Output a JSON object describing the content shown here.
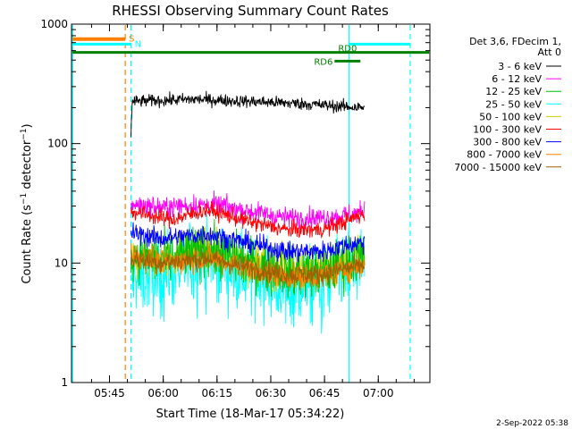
{
  "chart_data": {
    "type": "line",
    "title": "RHESSI Observing Summary Count Rates",
    "xlabel": "Start Time (18-Mar-17 05:34:22)",
    "ylabel": "Count Rate (s⁻¹ detector⁻¹)",
    "yscale": "log",
    "ylim": [
      1,
      1000
    ],
    "xlim_minutes": [
      0,
      100
    ],
    "xticks": [
      {
        "label": "05:45",
        "minute": 10.6
      },
      {
        "label": "06:00",
        "minute": 25.6
      },
      {
        "label": "06:15",
        "minute": 40.6
      },
      {
        "label": "06:30",
        "minute": 55.6
      },
      {
        "label": "06:45",
        "minute": 70.6
      },
      {
        "label": "07:00",
        "minute": 85.6
      }
    ],
    "yticks": [
      {
        "label": "1",
        "value": 1
      },
      {
        "label": "10",
        "value": 10
      },
      {
        "label": "100",
        "value": 100
      },
      {
        "label": "1000",
        "value": 1000
      }
    ],
    "legend_title": [
      "Det 3,6, FDecim 1,",
      "Att 0"
    ],
    "legend_placement": "right",
    "data_start_minute": 16.6,
    "data_end_minute": 81.8,
    "series": [
      {
        "name": "3 - 6 keV",
        "color": "#000000",
        "values_at": [
          [
            16.6,
            120
          ],
          [
            17,
            225
          ],
          [
            25,
            230
          ],
          [
            35,
            235
          ],
          [
            45,
            228
          ],
          [
            55,
            222
          ],
          [
            65,
            215
          ],
          [
            75,
            205
          ],
          [
            81.8,
            200
          ]
        ],
        "noise": 0.06
      },
      {
        "name": "6 - 12 keV",
        "color": "#ff00ff",
        "values_at": [
          [
            16.6,
            31
          ],
          [
            25,
            29
          ],
          [
            30,
            30
          ],
          [
            40,
            31
          ],
          [
            50,
            27
          ],
          [
            60,
            24
          ],
          [
            70,
            24
          ],
          [
            76,
            25
          ],
          [
            81.8,
            27
          ]
        ],
        "noise": 0.1
      },
      {
        "name": "12 - 25 keV",
        "color": "#00c000",
        "values_at": [
          [
            16.6,
            12
          ],
          [
            25,
            10.5
          ],
          [
            38,
            13
          ],
          [
            50,
            10
          ],
          [
            60,
            8.5
          ],
          [
            70,
            8.3
          ],
          [
            76,
            10
          ],
          [
            81.8,
            12
          ]
        ],
        "noise": 0.25
      },
      {
        "name": "25 - 50 keV",
        "color": "#00ffff",
        "values_at": [
          [
            16.6,
            7
          ],
          [
            25,
            8
          ],
          [
            38,
            11
          ],
          [
            50,
            8
          ],
          [
            60,
            6
          ],
          [
            70,
            6.5
          ],
          [
            76,
            8
          ],
          [
            81.8,
            9
          ]
        ],
        "noise": 0.35
      },
      {
        "name": "50 - 100 keV",
        "color": "#d0d000",
        "values_at": [
          [
            16.6,
            11
          ],
          [
            25,
            11
          ],
          [
            38,
            13
          ],
          [
            50,
            10
          ],
          [
            60,
            9
          ],
          [
            70,
            9
          ],
          [
            76,
            10
          ],
          [
            81.8,
            11
          ]
        ],
        "noise": 0.2
      },
      {
        "name": "100 - 300 keV",
        "color": "#ff0000",
        "values_at": [
          [
            16.6,
            27
          ],
          [
            22,
            25
          ],
          [
            28,
            23
          ],
          [
            38,
            28
          ],
          [
            50,
            22
          ],
          [
            60,
            19
          ],
          [
            70,
            19
          ],
          [
            76,
            22
          ],
          [
            81.8,
            26
          ]
        ],
        "noise": 0.08
      },
      {
        "name": "300 - 800 keV",
        "color": "#0000ff",
        "values_at": [
          [
            16.6,
            18
          ],
          [
            25,
            16
          ],
          [
            38,
            17.5
          ],
          [
            50,
            14.5
          ],
          [
            60,
            12.5
          ],
          [
            70,
            12.5
          ],
          [
            76,
            14
          ],
          [
            81.8,
            15
          ]
        ],
        "noise": 0.1
      },
      {
        "name": "800 - 7000 keV",
        "color": "#ff8000",
        "values_at": [
          [
            16.6,
            12
          ],
          [
            25,
            10
          ],
          [
            38,
            11
          ],
          [
            50,
            9
          ],
          [
            60,
            7.6
          ],
          [
            70,
            7.8
          ],
          [
            76,
            8.8
          ],
          [
            81.8,
            9.5
          ]
        ],
        "noise": 0.12
      },
      {
        "name": "7000 - 15000 keV",
        "color": "#a06000",
        "values_at": [
          [
            16.6,
            11
          ],
          [
            25,
            10
          ],
          [
            38,
            11
          ],
          [
            50,
            9
          ],
          [
            60,
            8
          ],
          [
            70,
            8
          ],
          [
            76,
            9
          ],
          [
            81.8,
            9.5
          ]
        ],
        "noise": 0.1
      }
    ],
    "vertical_lines": [
      {
        "minute": 0.3,
        "color": "#00ffff",
        "style": "solid"
      },
      {
        "minute": 15.0,
        "color": "#ff8000",
        "style": "dashed"
      },
      {
        "minute": 16.6,
        "color": "#00ffff",
        "style": "dashed"
      },
      {
        "minute": 77.4,
        "color": "#00ffff",
        "style": "solid"
      },
      {
        "minute": 94.5,
        "color": "#00ffff",
        "style": "dashed"
      }
    ],
    "top_bars": [
      {
        "label": "S",
        "color": "#ff8000",
        "from": 0.3,
        "to": 15.0,
        "value": 750,
        "thick": 4
      },
      {
        "label": "N",
        "color": "#00ffff",
        "from": 0.3,
        "to": 16.6,
        "value": 680,
        "thick": 3
      },
      {
        "label": "",
        "color": "#00ffff",
        "from": 77.4,
        "to": 94.5,
        "value": 680,
        "thick": 3
      },
      {
        "label": "",
        "color": "#008000",
        "from": 0.3,
        "to": 99.8,
        "value": 580,
        "thick": 3
      },
      {
        "label": "RD0",
        "color": "#008000",
        "from": 77.4,
        "to": 77.4,
        "value": 580,
        "thick": 3
      },
      {
        "label": "RD6",
        "color": "#008000",
        "from": 73.4,
        "to": 80.6,
        "value": 490,
        "thick": 3
      }
    ]
  },
  "footer": {
    "date": "2-Sep-2022 05:38"
  }
}
